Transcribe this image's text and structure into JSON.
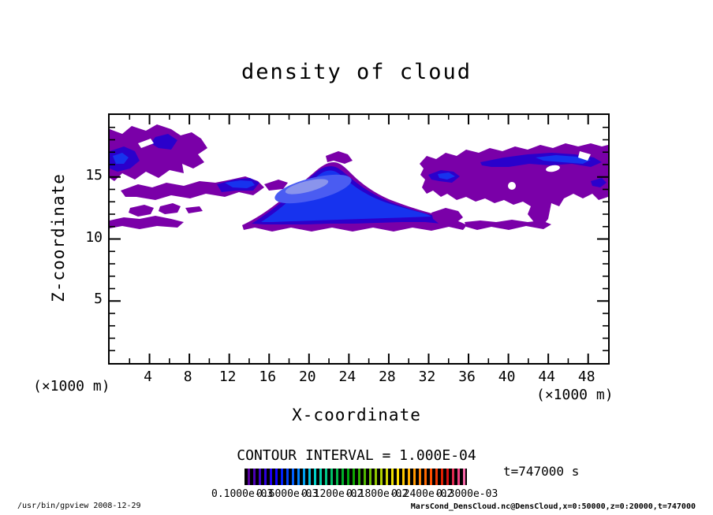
{
  "title": "density of cloud",
  "axes": {
    "x": {
      "label": "X-coordinate",
      "unit_left": "(×1000 m)",
      "unit_right": "(×1000 m)",
      "range": [
        0,
        50
      ],
      "major_ticks": [
        4,
        8,
        12,
        16,
        20,
        24,
        28,
        32,
        36,
        40,
        44,
        48
      ],
      "minor_ticks": [
        2,
        6,
        10,
        14,
        18,
        22,
        26,
        30,
        34,
        38,
        42,
        46
      ]
    },
    "y": {
      "label": "Z-coordinate",
      "range": [
        0,
        20
      ],
      "major_ticks": [
        5,
        10,
        15
      ],
      "minor_ticks": [
        1,
        2,
        3,
        4,
        6,
        7,
        8,
        9,
        11,
        12,
        13,
        14,
        16,
        17,
        18,
        19
      ]
    }
  },
  "legend": {
    "contour_interval_text": "CONTOUR INTERVAL = 1.000E-04",
    "time_text": "t=747000 s",
    "colorbar_tick_labels": [
      "0.1000e-03",
      "0.6000e-03",
      "0.1200e-02",
      "0.1800e-02",
      "0.2400e-02",
      "0.3000e-03"
    ]
  },
  "footer": {
    "left": "/usr/bin/gpview  2008-12-29",
    "right": "MarsCond_DensCloud.nc@DensCloud,x=0:50000,z=0:20000,t=747000"
  },
  "palette": {
    "cloud_purple": "#7A00A8",
    "cloud_darkblue": "#2A00CC",
    "cloud_blue": "#1733EE",
    "cloud_corelight": "#4A5CF2",
    "cloud_corelighter": "#8A94EC",
    "background": "#FFFFFF",
    "frame": "#000000"
  },
  "colorbar": {
    "stripe_colors": [
      "#5A00A0",
      "#4B00B4",
      "#3C00C8",
      "#2D00DC",
      "#1E00F0",
      "#0F00FF",
      "#0020FF",
      "#0040FF",
      "#0060FF",
      "#0080FF",
      "#00A0F0",
      "#00C0E0",
      "#00D0C8",
      "#00D0A8",
      "#00C888",
      "#00C068",
      "#00B848",
      "#00B028",
      "#00A810",
      "#10A800",
      "#30B000",
      "#50B800",
      "#70C000",
      "#90C800",
      "#B0D000",
      "#D0D800",
      "#F0E000",
      "#FFE000",
      "#FFC800",
      "#FFB000",
      "#FF9800",
      "#FF8000",
      "#FF6800",
      "#FF5000",
      "#F03800",
      "#E02000",
      "#D81010",
      "#E02850",
      "#F04080",
      "#F868A8"
    ]
  },
  "chart_data": {
    "type": "heatmap",
    "subtype": "filled-contour",
    "title": "density of cloud",
    "xlabel": "X-coordinate (×1000 m)",
    "ylabel": "Z-coordinate (×1000 m)",
    "xlim": [
      0,
      50
    ],
    "ylim": [
      0,
      20
    ],
    "x_ticks": [
      4,
      8,
      12,
      16,
      20,
      24,
      28,
      32,
      36,
      40,
      44,
      48
    ],
    "y_ticks": [
      5,
      10,
      15
    ],
    "grid": false,
    "legend_position": "bottom",
    "contour_interval": 0.0001,
    "time_seconds": 747000,
    "source_field": "MarsCond_DensCloud.nc@DensCloud,x=0:50000,z=0:20000,t=747000",
    "features": [
      {
        "name": "upper-left cloud patch",
        "x_extent_km": [
          0,
          10
        ],
        "z_extent_km": [
          14.5,
          19
        ],
        "density": "low-moderate, purple shading with small dark-blue cores (~2-5e-4)"
      },
      {
        "name": "left layered band",
        "x_extent_km": [
          1,
          15
        ],
        "z_extent_km": [
          13,
          14.5
        ],
        "density": "low (~1e-4), blue core ~4e-4 near x=11-14"
      },
      {
        "name": "scattered lower-left patches",
        "x_extent_km": [
          0,
          14
        ],
        "z_extent_km": [
          11,
          12.5
        ],
        "density": "low (~1e-4)"
      },
      {
        "name": "central lens cloud",
        "x_extent_km": [
          13,
          36
        ],
        "z_extent_km": [
          11,
          15.5
        ],
        "density": "highest; bright/light-blue core (>1e-3) centered near x=18-25, z=12-13, tapering thin tail eastward"
      },
      {
        "name": "right cloud deck",
        "x_extent_km": [
          31,
          50
        ],
        "z_extent_km": [
          11.5,
          17.5
        ],
        "density": "low-moderate purple with elongated dark-blue streaks (~4-6e-4) near z=15-16.5"
      }
    ]
  }
}
